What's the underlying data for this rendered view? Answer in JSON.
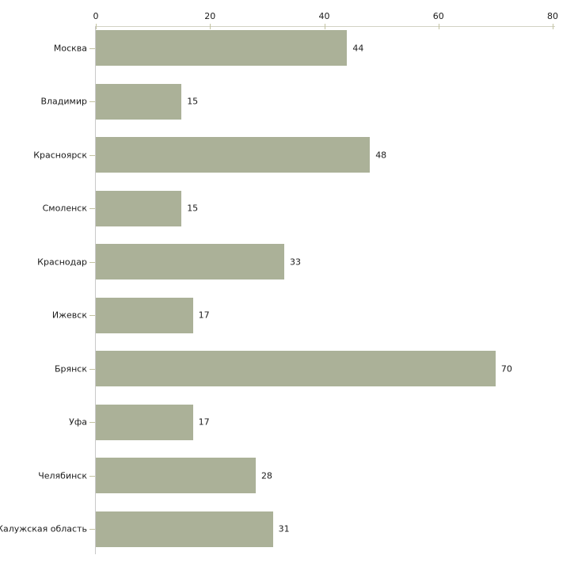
{
  "chart_data": {
    "type": "bar",
    "orientation": "horizontal",
    "title": "",
    "xlabel": "",
    "ylabel": "",
    "categories": [
      "Москва",
      "Владимир",
      "Красноярск",
      "Смоленск",
      "Краснодар",
      "Ижевск",
      "Брянск",
      "Уфа",
      "Челябинск",
      "Калужская область"
    ],
    "values": [
      44,
      15,
      48,
      15,
      33,
      17,
      70,
      17,
      28,
      31
    ],
    "xlim": [
      0,
      80
    ],
    "xticks": [
      0,
      20,
      40,
      60,
      80
    ],
    "grid": false,
    "legend": "none",
    "value_labels_shown": true,
    "colors": {
      "bar_fill": "#abb198",
      "x_axis_line": "#d2d2c4",
      "y_axis_line": "#c9c9c9",
      "tick_mark": "#c3c3a1",
      "text": "#1a1a1a",
      "background": "#ffffff"
    }
  }
}
